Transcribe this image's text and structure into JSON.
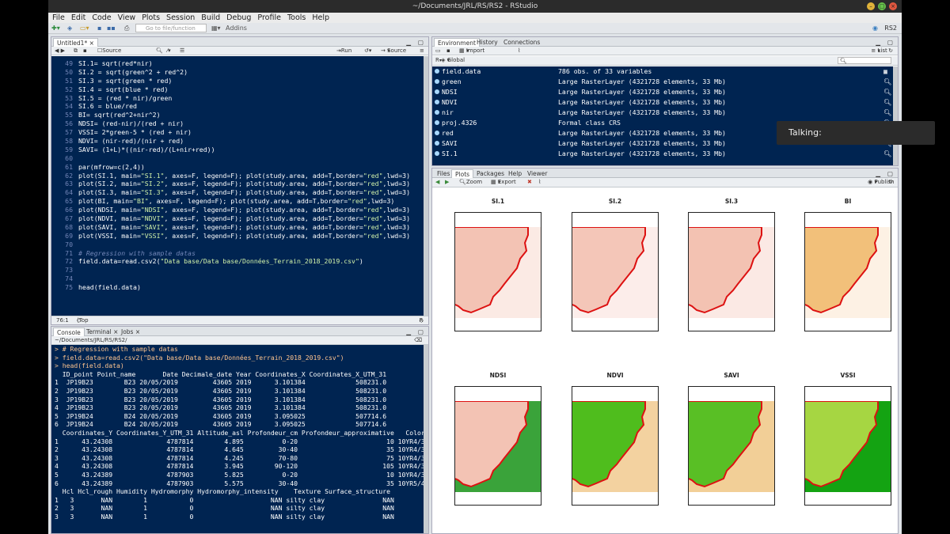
{
  "window": {
    "title": "~/Documents/JRL/RS/RS2 - RStudio"
  },
  "menubar": [
    "File",
    "Edit",
    "Code",
    "View",
    "Plots",
    "Session",
    "Build",
    "Debug",
    "Profile",
    "Tools",
    "Help"
  ],
  "toolbar": {
    "goto_placeholder": "Go to file/function",
    "addins": "Addins",
    "project": "RS2"
  },
  "editor": {
    "tab": "Untitled1*",
    "source_on_save": "Source on Save",
    "run": "Run",
    "source": "Source",
    "status_pos": "76:1",
    "status_level": "(Top Level)",
    "status_type": "R Script",
    "lines": [
      {
        "n": "49",
        "t": "SI.1= sqrt(red*nir)"
      },
      {
        "n": "50",
        "t": "SI.2 = sqrt(green^2 + red^2)"
      },
      {
        "n": "51",
        "t": "SI.3 = sqrt(green * red)"
      },
      {
        "n": "52",
        "t": "SI.4 = sqrt(blue * red)"
      },
      {
        "n": "53",
        "t": "SI.5 = (red * nir)/green"
      },
      {
        "n": "54",
        "t": "SI.6 = blue/red"
      },
      {
        "n": "55",
        "t": "BI= sqrt(red^2+nir^2)"
      },
      {
        "n": "56",
        "t": "NDSI= (red-nir)/(red + nir)"
      },
      {
        "n": "57",
        "t": "VSSI= 2*green-5 * (red + nir)"
      },
      {
        "n": "58",
        "t": "NDVI= (nir-red)/(nir + red)"
      },
      {
        "n": "59",
        "t": "SAVI= (1+L)*((nir-red)/(L+nir+red))"
      },
      {
        "n": "60",
        "t": ""
      },
      {
        "n": "61",
        "t": "par(mfrow=c(2,4))"
      },
      {
        "n": "62",
        "t": "plot(SI.1, main=\"SI.1\", axes=F, legend=F); plot(study.area, add=T,border=\"red\",lwd=3)"
      },
      {
        "n": "63",
        "t": "plot(SI.2, main=\"SI.2\", axes=F, legend=F); plot(study.area, add=T,border=\"red\",lwd=3)"
      },
      {
        "n": "64",
        "t": "plot(SI.3, main=\"SI.3\", axes=F, legend=F); plot(study.area, add=T,border=\"red\",lwd=3)"
      },
      {
        "n": "65",
        "t": "plot(BI, main=\"BI\", axes=F, legend=F); plot(study.area, add=T,border=\"red\",lwd=3)"
      },
      {
        "n": "66",
        "t": "plot(NDSI, main=\"NDSI\", axes=F, legend=F); plot(study.area, add=T,border=\"red\",lwd=3)"
      },
      {
        "n": "67",
        "t": "plot(NDVI, main=\"NDVI\", axes=F, legend=F); plot(study.area, add=T,border=\"red\",lwd=3)"
      },
      {
        "n": "68",
        "t": "plot(SAVI, main=\"SAVI\", axes=F, legend=F); plot(study.area, add=T,border=\"red\",lwd=3)"
      },
      {
        "n": "69",
        "t": "plot(VSSI, main=\"VSSI\", axes=F, legend=F); plot(study.area, add=T,border=\"red\",lwd=3)"
      },
      {
        "n": "70",
        "t": ""
      },
      {
        "n": "71",
        "t": "# Regression with sample datas"
      },
      {
        "n": "72",
        "t": "field.data=read.csv2(\"Data base/Data base/Données_Terrain_2018_2019.csv\")"
      },
      {
        "n": "73",
        "t": ""
      },
      {
        "n": "74",
        "t": ""
      },
      {
        "n": "75",
        "t": "head(field.data)"
      }
    ]
  },
  "console": {
    "tabs": [
      "Console",
      "Terminal",
      "Jobs"
    ],
    "path": "~/Documents/JRL/RS/RS2/",
    "lines": [
      {
        "c": "cmd",
        "t": "> # Regression with sample datas"
      },
      {
        "c": "cmd",
        "t": "> field.data=read.csv2(\"Data base/Data base/Données_Terrain_2018_2019.csv\")"
      },
      {
        "c": "cmd",
        "t": "> head(field.data)"
      },
      {
        "c": "",
        "t": "  ID_point Point_name       Date Decimale_date Year Coordinates_X Coordinates_X_UTM_31"
      },
      {
        "c": "",
        "t": "1  JP19B23        B23 20/05/2019         43605 2019      3.101384             508231.0"
      },
      {
        "c": "",
        "t": "2  JP19B23        B23 20/05/2019         43605 2019      3.101384             508231.0"
      },
      {
        "c": "",
        "t": "3  JP19B23        B23 20/05/2019         43605 2019      3.101384             508231.0"
      },
      {
        "c": "",
        "t": "4  JP19B23        B23 20/05/2019         43605 2019      3.101384             508231.0"
      },
      {
        "c": "",
        "t": "5  JP19B24        B24 20/05/2019         43605 2019      3.095025             507714.6"
      },
      {
        "c": "",
        "t": "6  JP19B24        B24 20/05/2019         43605 2019      3.095025             507714.6"
      },
      {
        "c": "",
        "t": "  Coordinates_Y Coordinates_Y_UTM_31 Altitude_asl Profondeur_cm Profondeur_approximative   Color"
      },
      {
        "c": "",
        "t": "1      43.24308              4787814        4.895          0-20                       10 10YR4/3"
      },
      {
        "c": "",
        "t": "2      43.24308              4787814        4.645         30-40                       35 10YR4/3"
      },
      {
        "c": "",
        "t": "3      43.24308              4787814        4.245         70-80                       75 10YR4/3"
      },
      {
        "c": "",
        "t": "4      43.24308              4787814        3.945        90-120                      105 10YR4/3"
      },
      {
        "c": "",
        "t": "5      43.24389              4787903        5.825          0-20                       10 10YR4/3"
      },
      {
        "c": "",
        "t": "6      43.24389              4787903        5.575         30-40                       35 10YR5/4"
      },
      {
        "c": "",
        "t": "  Hcl Hcl_rough Humidity Hydromorphy Hydromorphy_intensity    Texture Surface_structure"
      },
      {
        "c": "",
        "t": "1   3       NAN        1           0                    NAN silty clay               NAN"
      },
      {
        "c": "",
        "t": "2   3       NAN        1           0                    NAN silty clay               NAN"
      },
      {
        "c": "",
        "t": "3   3       NAN        1           0                    NAN silty clay               NAN"
      }
    ]
  },
  "environment": {
    "tabs": [
      "Environment",
      "History",
      "Connections"
    ],
    "import_dataset": "Import Dataset",
    "global_env": "Global Environment",
    "list_label": "List",
    "rows": [
      {
        "name": "field.data",
        "value": "786 obs. of 33 variables"
      },
      {
        "name": "green",
        "value": "Large RasterLayer (4321728 elements, 33 Mb)"
      },
      {
        "name": "NDSI",
        "value": "Large RasterLayer (4321728 elements, 33 Mb)"
      },
      {
        "name": "NDVI",
        "value": "Large RasterLayer (4321728 elements, 33 Mb)"
      },
      {
        "name": "nir",
        "value": "Large RasterLayer (4321728 elements, 33 Mb)"
      },
      {
        "name": "proj.4326",
        "value": "Formal class CRS"
      },
      {
        "name": "red",
        "value": "Large RasterLayer (4321728 elements, 33 Mb)"
      },
      {
        "name": "SAVI",
        "value": "Large RasterLayer (4321728 elements, 33 Mb)"
      },
      {
        "name": "SI.1",
        "value": "Large RasterLayer (4321728 elements, 33 Mb)"
      }
    ]
  },
  "plots_pane": {
    "tabs": [
      "Files",
      "Plots",
      "Packages",
      "Help",
      "Viewer"
    ],
    "zoom": "Zoom",
    "export": "Export",
    "publish": "Publish",
    "plots": [
      {
        "title": "SI.1",
        "land": "#f3c3b4",
        "sea": "#fbeae4"
      },
      {
        "title": "SI.2",
        "land": "#f4c6b8",
        "sea": "#fcedea"
      },
      {
        "title": "SI.3",
        "land": "#f3c2b2",
        "sea": "#fbe9e4"
      },
      {
        "title": "BI",
        "land": "#f2c07a",
        "sea": "#fdf1e4"
      },
      {
        "title": "NDSI",
        "land": "#f3c3b4",
        "sea": "#3aa33a"
      },
      {
        "title": "NDVI",
        "land": "#4fbd1d",
        "sea": "#f3d2a0"
      },
      {
        "title": "SAVI",
        "land": "#59bf25",
        "sea": "#f2cf97"
      },
      {
        "title": "VSSI",
        "land": "#a6d642",
        "sea": "#14a312"
      }
    ]
  },
  "overlay": {
    "talking": "Talking:"
  }
}
